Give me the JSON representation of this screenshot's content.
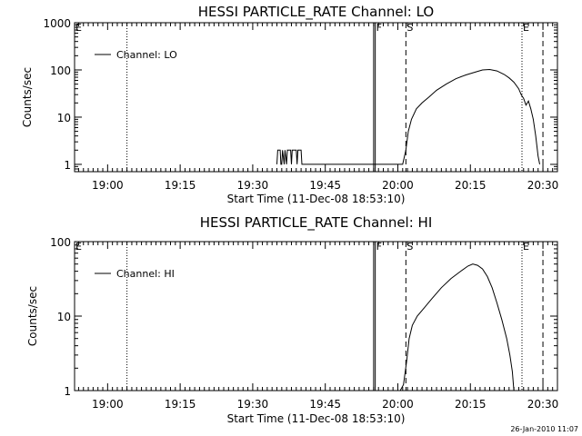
{
  "footer": {
    "timestamp": "26-Jan-2010 11:07"
  },
  "chart_data": [
    {
      "type": "line",
      "title": "HESSI PARTICLE_RATE Channel: LO",
      "xlabel": "Start Time (11-Dec-08 18:53:10)",
      "ylabel": "Counts/sec",
      "yscale": "log",
      "xlim": [
        "18:53:10",
        "20:33:00"
      ],
      "ylim": [
        0.7,
        1000
      ],
      "x_ticks": [
        "19:00",
        "19:15",
        "19:30",
        "19:45",
        "20:00",
        "20:15",
        "20:30"
      ],
      "y_ticks": [
        "1",
        "10",
        "100",
        "1000"
      ],
      "legend": {
        "position": "top-left",
        "entries": [
          "Channel: LO"
        ]
      },
      "series": [
        {
          "name": "Channel: LO",
          "points": [
            [
              "19:35:00",
              1
            ],
            [
              "19:35:10",
              2
            ],
            [
              "19:35:40",
              2
            ],
            [
              "19:35:50",
              1
            ],
            [
              "19:36:00",
              1
            ],
            [
              "19:36:10",
              2
            ],
            [
              "19:36:30",
              1
            ],
            [
              "19:36:40",
              2
            ],
            [
              "19:37:00",
              1
            ],
            [
              "19:37:10",
              2
            ],
            [
              "19:37:50",
              2
            ],
            [
              "19:38:00",
              1
            ],
            [
              "19:38:10",
              2
            ],
            [
              "19:39:00",
              2
            ],
            [
              "19:39:10",
              1
            ],
            [
              "19:39:20",
              2
            ],
            [
              "19:40:00",
              2
            ],
            [
              "19:40:10",
              1
            ],
            [
              "20:01:00",
              1
            ],
            [
              "20:01:40",
              2
            ],
            [
              "20:02:10",
              5
            ],
            [
              "20:02:50",
              9
            ],
            [
              "20:03:50",
              15
            ],
            [
              "20:05:00",
              20
            ],
            [
              "20:06:30",
              27
            ],
            [
              "20:08:00",
              37
            ],
            [
              "20:10:00",
              50
            ],
            [
              "20:12:00",
              65
            ],
            [
              "20:14:00",
              78
            ],
            [
              "20:16:00",
              90
            ],
            [
              "20:17:30",
              100
            ],
            [
              "20:19:00",
              102
            ],
            [
              "20:20:30",
              95
            ],
            [
              "20:22:00",
              80
            ],
            [
              "20:23:00",
              68
            ],
            [
              "20:24:00",
              55
            ],
            [
              "20:25:00",
              40
            ],
            [
              "20:25:30",
              30
            ],
            [
              "20:26:00",
              25
            ],
            [
              "20:26:30",
              18
            ],
            [
              "20:27:00",
              22
            ],
            [
              "20:27:30",
              15
            ],
            [
              "20:28:00",
              9
            ],
            [
              "20:28:30",
              4
            ],
            [
              "20:29:00",
              1.5
            ],
            [
              "20:29:20",
              1
            ]
          ]
        }
      ],
      "vertical_lines": [
        {
          "x": "19:04:00",
          "style": "dotted"
        },
        {
          "x": "19:55:00",
          "style": "solid"
        },
        {
          "x": "19:55:20",
          "style": "solid"
        },
        {
          "x": "20:01:40",
          "style": "dashed"
        },
        {
          "x": "20:25:40",
          "style": "dotted"
        },
        {
          "x": "20:30:00",
          "style": "dashed"
        },
        {
          "x": "20:33:00",
          "style": "dotted"
        }
      ],
      "flags": [
        {
          "label": "E",
          "x": "18:53:10"
        },
        {
          "label": "F",
          "x": "19:55:20"
        },
        {
          "label": "S",
          "x": "20:01:40"
        },
        {
          "label": "E",
          "x": "20:25:40"
        }
      ]
    },
    {
      "type": "line",
      "title": "HESSI PARTICLE_RATE Channel: HI",
      "xlabel": "Start Time (11-Dec-08 18:53:10)",
      "ylabel": "Counts/sec",
      "yscale": "log",
      "xlim": [
        "18:53:10",
        "20:33:00"
      ],
      "ylim": [
        1,
        100
      ],
      "x_ticks": [
        "19:00",
        "19:15",
        "19:30",
        "19:45",
        "20:00",
        "20:15",
        "20:30"
      ],
      "y_ticks": [
        "1",
        "10",
        "100"
      ],
      "legend": {
        "position": "top-left",
        "entries": [
          "Channel: HI"
        ]
      },
      "series": [
        {
          "name": "Channel: HI",
          "points": [
            [
              "20:00:30",
              1
            ],
            [
              "20:01:10",
              1.2
            ],
            [
              "20:01:50",
              2.5
            ],
            [
              "20:02:20",
              5
            ],
            [
              "20:03:00",
              7.5
            ],
            [
              "20:04:00",
              10
            ],
            [
              "20:05:30",
              13
            ],
            [
              "20:07:00",
              17
            ],
            [
              "20:09:00",
              24
            ],
            [
              "20:11:00",
              32
            ],
            [
              "20:13:00",
              40
            ],
            [
              "20:14:30",
              47
            ],
            [
              "20:15:30",
              50
            ],
            [
              "20:16:30",
              48
            ],
            [
              "20:17:30",
              43
            ],
            [
              "20:18:30",
              34
            ],
            [
              "20:19:30",
              24
            ],
            [
              "20:20:30",
              15
            ],
            [
              "20:21:30",
              9
            ],
            [
              "20:22:30",
              5
            ],
            [
              "20:23:10",
              3
            ],
            [
              "20:23:40",
              1.8
            ],
            [
              "20:24:00",
              1
            ]
          ]
        }
      ],
      "vertical_lines": [
        {
          "x": "19:04:00",
          "style": "dotted"
        },
        {
          "x": "19:55:00",
          "style": "solid"
        },
        {
          "x": "19:55:20",
          "style": "solid"
        },
        {
          "x": "20:01:40",
          "style": "dashed"
        },
        {
          "x": "20:25:40",
          "style": "dotted"
        },
        {
          "x": "20:30:00",
          "style": "dashed"
        },
        {
          "x": "20:33:00",
          "style": "dotted"
        }
      ],
      "flags": [
        {
          "label": "E",
          "x": "18:53:10"
        },
        {
          "label": "F",
          "x": "19:55:20"
        },
        {
          "label": "S",
          "x": "20:01:40"
        },
        {
          "label": "E",
          "x": "20:25:40"
        }
      ]
    }
  ]
}
